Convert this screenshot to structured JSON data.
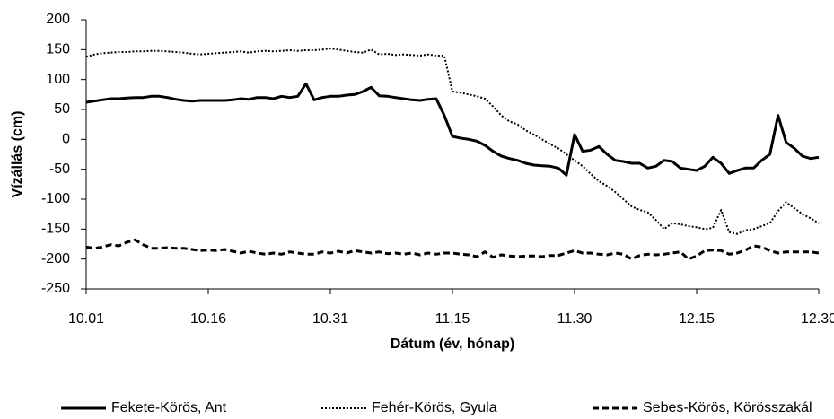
{
  "chart_data": {
    "type": "line",
    "xlabel": "Dátum (év, hónap)",
    "ylabel": "Vízállás (cm)",
    "categories": [
      "10.01",
      null,
      null,
      null,
      null,
      null,
      null,
      null,
      null,
      null,
      null,
      null,
      null,
      null,
      null,
      "10.16",
      null,
      null,
      null,
      null,
      null,
      null,
      null,
      null,
      null,
      null,
      null,
      null,
      null,
      null,
      "10.31",
      null,
      null,
      null,
      null,
      null,
      null,
      null,
      null,
      null,
      null,
      null,
      null,
      null,
      null,
      "11.15",
      null,
      null,
      null,
      null,
      null,
      null,
      null,
      null,
      null,
      null,
      null,
      null,
      null,
      null,
      "11.30",
      null,
      null,
      null,
      null,
      null,
      null,
      null,
      null,
      null,
      null,
      null,
      null,
      null,
      null,
      "12.15",
      null,
      null,
      null,
      null,
      null,
      null,
      null,
      null,
      null,
      null,
      null,
      null,
      null,
      null,
      "12.30"
    ],
    "ylim": [
      -250,
      200
    ],
    "yticks": [
      -250,
      -200,
      -150,
      -100,
      -50,
      0,
      50,
      100,
      150,
      200
    ],
    "grid": false,
    "legend": "bottom",
    "series": [
      {
        "name": "Fekete-Körös, Ant",
        "color": "#000000",
        "dash": "solid",
        "values": [
          62,
          64,
          66,
          68,
          68,
          69,
          70,
          70,
          72,
          72,
          70,
          67,
          65,
          64,
          65,
          65,
          65,
          65,
          66,
          68,
          67,
          70,
          70,
          68,
          72,
          70,
          72,
          93,
          66,
          70,
          72,
          72,
          74,
          75,
          80,
          87,
          73,
          72,
          70,
          68,
          66,
          65,
          67,
          68,
          40,
          5,
          2,
          0,
          -3,
          -10,
          -20,
          -28,
          -32,
          -35,
          -40,
          -43,
          -44,
          -45,
          -48,
          -60,
          8,
          -20,
          -18,
          -12,
          -25,
          -35,
          -37,
          -40,
          -40,
          -48,
          -45,
          -35,
          -37,
          -48,
          -50,
          -52,
          -45,
          -30,
          -40,
          -57,
          -52,
          -48,
          -48,
          -35,
          -25,
          40,
          -5,
          -15,
          -28,
          -32,
          -30
        ]
      },
      {
        "name": "Fehér-Körös, Gyula",
        "color": "#000000",
        "dash": "dotted",
        "values": [
          138,
          142,
          144,
          145,
          146,
          146,
          147,
          147,
          148,
          148,
          147,
          146,
          145,
          143,
          142,
          143,
          144,
          145,
          146,
          147,
          145,
          147,
          148,
          147,
          148,
          149,
          148,
          149,
          149,
          150,
          152,
          150,
          148,
          146,
          145,
          150,
          142,
          143,
          141,
          142,
          141,
          140,
          142,
          140,
          140,
          80,
          78,
          75,
          72,
          68,
          55,
          40,
          30,
          25,
          15,
          8,
          0,
          -8,
          -15,
          -25,
          -35,
          -45,
          -58,
          -70,
          -78,
          -88,
          -100,
          -112,
          -118,
          -122,
          -135,
          -150,
          -140,
          -142,
          -145,
          -147,
          -150,
          -148,
          -118,
          -155,
          -158,
          -152,
          -150,
          -145,
          -140,
          -120,
          -105,
          -115,
          -125,
          -132,
          -140
        ]
      },
      {
        "name": "Sebes-Körös, Körösszakál",
        "color": "#000000",
        "dash": "dashed",
        "values": [
          -180,
          -182,
          -180,
          -176,
          -178,
          -172,
          -168,
          -176,
          -182,
          -182,
          -181,
          -182,
          -182,
          -184,
          -186,
          -185,
          -186,
          -184,
          -187,
          -190,
          -187,
          -190,
          -192,
          -190,
          -192,
          -188,
          -190,
          -192,
          -192,
          -188,
          -190,
          -187,
          -190,
          -186,
          -188,
          -190,
          -188,
          -191,
          -190,
          -192,
          -190,
          -193,
          -190,
          -192,
          -190,
          -190,
          -192,
          -193,
          -196,
          -188,
          -197,
          -193,
          -195,
          -196,
          -195,
          -195,
          -196,
          -194,
          -194,
          -190,
          -186,
          -190,
          -190,
          -192,
          -193,
          -190,
          -192,
          -200,
          -194,
          -192,
          -193,
          -192,
          -190,
          -188,
          -200,
          -195,
          -186,
          -185,
          -186,
          -192,
          -190,
          -185,
          -178,
          -180,
          -186,
          -190,
          -188,
          -188,
          -188,
          -188,
          -190
        ]
      }
    ]
  }
}
